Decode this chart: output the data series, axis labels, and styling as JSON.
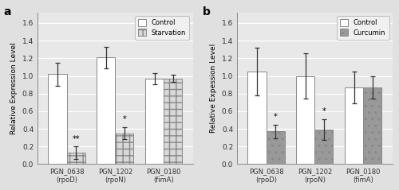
{
  "panel_a": {
    "title": "a",
    "categories": [
      "PGN_0638\n(rpoD)",
      "PGN_1202\n(rpoN)",
      "PGN_0180\n(fimA)"
    ],
    "control_vals": [
      1.02,
      1.21,
      0.97
    ],
    "control_errs": [
      0.13,
      0.12,
      0.06
    ],
    "treatment_vals": [
      0.13,
      0.35,
      0.97
    ],
    "treatment_errs": [
      0.07,
      0.07,
      0.04
    ],
    "legend_label": "Starvation",
    "stars": [
      "**",
      "*",
      ""
    ],
    "ylabel": "Relative Expression Level",
    "ylim": [
      0,
      1.72
    ],
    "yticks": [
      0.0,
      0.2,
      0.4,
      0.6,
      0.8,
      1.0,
      1.2,
      1.4,
      1.6
    ]
  },
  "panel_b": {
    "title": "b",
    "categories": [
      "PGN_0638\n(rpoD)",
      "PGN_1202\n(rpoN)",
      "PGN_0180\n(fimA)"
    ],
    "control_vals": [
      1.05,
      1.0,
      0.87
    ],
    "control_errs": [
      0.27,
      0.26,
      0.18
    ],
    "treatment_vals": [
      0.37,
      0.39,
      0.87
    ],
    "treatment_errs": [
      0.08,
      0.12,
      0.13
    ],
    "legend_label": "Curcumin",
    "stars": [
      "*",
      "*",
      ""
    ],
    "ylabel": "Relative Expession Level",
    "ylim": [
      0,
      1.72
    ],
    "yticks": [
      0.0,
      0.2,
      0.4,
      0.6,
      0.8,
      1.0,
      1.2,
      1.4,
      1.6
    ]
  },
  "control_color": "#ffffff",
  "control_edgecolor": "#888888",
  "starvation_color_face": "#d8d8d8",
  "curcumin_color_face": "#999999",
  "starvation_hatch": "++",
  "curcumin_hatch": "..",
  "bar_width": 0.38,
  "figure_bg": "#e0e0e0",
  "axes_bg": "#e8e8e8",
  "grid_color": "#ffffff"
}
